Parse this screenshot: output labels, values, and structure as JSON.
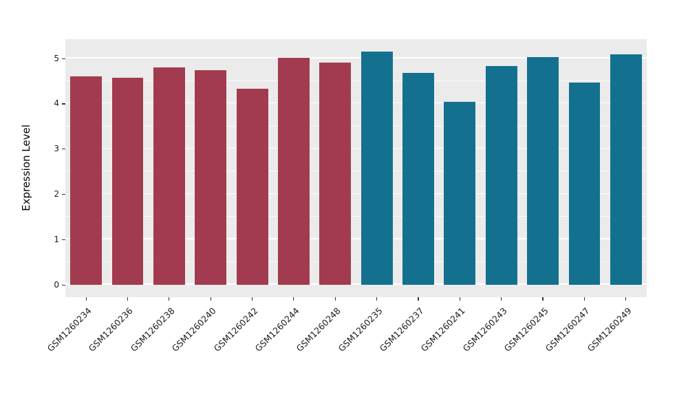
{
  "chart_data": {
    "type": "bar",
    "title": "",
    "xlabel": "",
    "ylabel": "Expression Level",
    "legend": "none",
    "grid": "on",
    "panel_background": "#EBEBEB",
    "gridline_color": "#FFFFFF",
    "yticks": [
      0,
      1,
      2,
      3,
      4,
      5
    ],
    "yticks_minor": [
      0.5,
      1.5,
      2.5,
      3.5,
      4.5
    ],
    "ylim": [
      -0.28,
      5.42
    ],
    "categories": [
      "GSM1260234",
      "GSM1260236",
      "GSM1260238",
      "GSM1260240",
      "GSM1260242",
      "GSM1260244",
      "GSM1260248",
      "GSM1260235",
      "GSM1260237",
      "GSM1260241",
      "GSM1260243",
      "GSM1260245",
      "GSM1260247",
      "GSM1260249"
    ],
    "values": [
      4.6,
      4.57,
      4.8,
      4.74,
      4.33,
      5.01,
      4.91,
      5.15,
      4.68,
      4.03,
      4.83,
      5.03,
      4.47,
      5.09
    ],
    "bar_colors": [
      "#A23B4F",
      "#A23B4F",
      "#A23B4F",
      "#A23B4F",
      "#A23B4F",
      "#A23B4F",
      "#A23B4F",
      "#13718F",
      "#13718F",
      "#13718F",
      "#13718F",
      "#13718F",
      "#13718F",
      "#13718F"
    ],
    "group_colors": {
      "left_group": "#A23B4F",
      "right_group": "#13718F"
    }
  }
}
